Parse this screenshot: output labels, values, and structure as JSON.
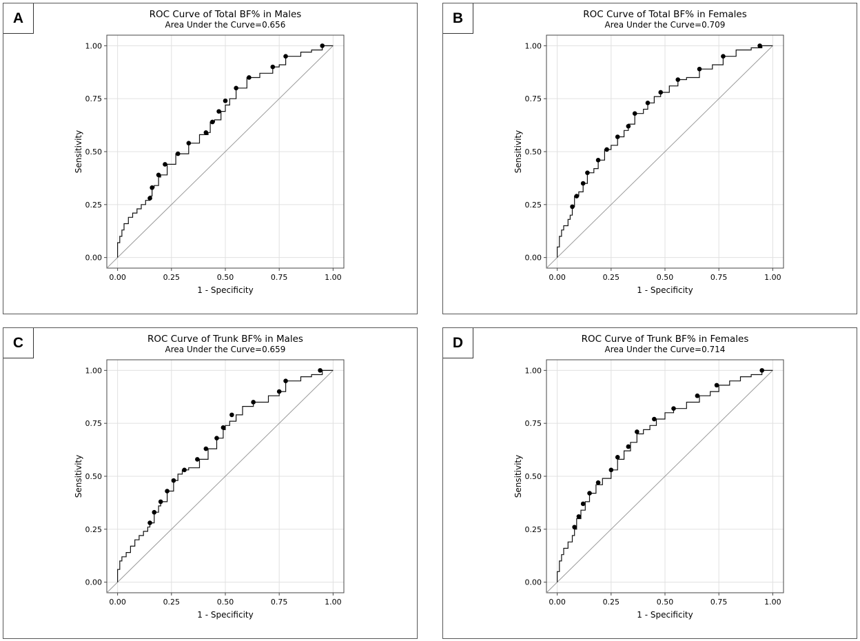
{
  "chart_data": [
    {
      "type": "line",
      "panel_label": "A",
      "title": "ROC Curve of Total BF% in Males",
      "subtitle": "Area Under the Curve=0.656",
      "xlabel": "1 - Specificity",
      "ylabel": "Sensitivity",
      "xlim": [
        -0.05,
        1.05
      ],
      "ylim": [
        -0.05,
        1.05
      ],
      "xticks": [
        "0.00",
        "0.25",
        "0.50",
        "0.75",
        "1.00"
      ],
      "yticks": [
        "0.00",
        "0.25",
        "0.50",
        "0.75",
        "1.00"
      ],
      "grid": true,
      "reference_line": {
        "x": [
          -0.05,
          1.0
        ],
        "y": [
          -0.05,
          1.0
        ]
      },
      "series": [
        {
          "name": "ROC",
          "x": [
            0.0,
            0.0,
            0.01,
            0.02,
            0.03,
            0.05,
            0.07,
            0.09,
            0.11,
            0.13,
            0.15,
            0.16,
            0.17,
            0.19,
            0.2,
            0.23,
            0.27,
            0.33,
            0.38,
            0.42,
            0.43,
            0.45,
            0.48,
            0.5,
            0.52,
            0.55,
            0.6,
            0.66,
            0.72,
            0.75,
            0.78,
            0.85,
            0.9,
            0.95,
            1.0
          ],
          "y": [
            0.0,
            0.07,
            0.1,
            0.13,
            0.16,
            0.19,
            0.21,
            0.23,
            0.25,
            0.27,
            0.29,
            0.33,
            0.34,
            0.38,
            0.39,
            0.44,
            0.49,
            0.54,
            0.58,
            0.59,
            0.64,
            0.65,
            0.69,
            0.72,
            0.75,
            0.8,
            0.85,
            0.87,
            0.9,
            0.91,
            0.95,
            0.97,
            0.98,
            1.0,
            1.0
          ]
        }
      ],
      "markers": {
        "x": [
          0.15,
          0.16,
          0.19,
          0.22,
          0.28,
          0.33,
          0.41,
          0.44,
          0.47,
          0.5,
          0.55,
          0.61,
          0.72,
          0.78,
          0.95
        ],
        "y": [
          0.28,
          0.33,
          0.39,
          0.44,
          0.49,
          0.54,
          0.59,
          0.64,
          0.69,
          0.74,
          0.8,
          0.85,
          0.9,
          0.95,
          1.0
        ]
      }
    },
    {
      "type": "line",
      "panel_label": "B",
      "title": "ROC Curve of Total BF% in Females",
      "subtitle": "Area Under the Curve=0.709",
      "xlabel": "1 - Specificity",
      "ylabel": "Sensitivity",
      "xlim": [
        -0.05,
        1.05
      ],
      "ylim": [
        -0.05,
        1.05
      ],
      "xticks": [
        "0.00",
        "0.25",
        "0.50",
        "0.75",
        "1.00"
      ],
      "yticks": [
        "0.00",
        "0.25",
        "0.50",
        "0.75",
        "1.00"
      ],
      "grid": true,
      "reference_line": {
        "x": [
          -0.05,
          1.0
        ],
        "y": [
          -0.05,
          1.0
        ]
      },
      "series": [
        {
          "name": "ROC",
          "x": [
            0.0,
            0.0,
            0.01,
            0.02,
            0.03,
            0.05,
            0.06,
            0.07,
            0.08,
            0.1,
            0.12,
            0.14,
            0.17,
            0.19,
            0.22,
            0.25,
            0.28,
            0.31,
            0.33,
            0.36,
            0.4,
            0.42,
            0.45,
            0.48,
            0.52,
            0.56,
            0.6,
            0.66,
            0.72,
            0.77,
            0.83,
            0.9,
            0.95,
            1.0
          ],
          "y": [
            0.0,
            0.05,
            0.1,
            0.13,
            0.15,
            0.18,
            0.2,
            0.24,
            0.29,
            0.31,
            0.35,
            0.4,
            0.42,
            0.46,
            0.51,
            0.53,
            0.57,
            0.6,
            0.63,
            0.68,
            0.7,
            0.73,
            0.76,
            0.78,
            0.81,
            0.84,
            0.85,
            0.89,
            0.91,
            0.95,
            0.98,
            0.99,
            1.0,
            1.0
          ]
        }
      ],
      "markers": {
        "x": [
          0.07,
          0.09,
          0.12,
          0.14,
          0.19,
          0.23,
          0.28,
          0.33,
          0.36,
          0.42,
          0.48,
          0.56,
          0.66,
          0.77,
          0.94
        ],
        "y": [
          0.24,
          0.29,
          0.35,
          0.4,
          0.46,
          0.51,
          0.57,
          0.62,
          0.68,
          0.73,
          0.78,
          0.84,
          0.89,
          0.95,
          1.0
        ]
      }
    },
    {
      "type": "line",
      "panel_label": "C",
      "title": "ROC Curve of Trunk BF% in Males",
      "subtitle": "Area Under the Curve=0.659",
      "xlabel": "1 - Specificity",
      "ylabel": "Sensitivity",
      "xlim": [
        -0.05,
        1.05
      ],
      "ylim": [
        -0.05,
        1.05
      ],
      "xticks": [
        "0.00",
        "0.25",
        "0.50",
        "0.75",
        "1.00"
      ],
      "yticks": [
        "0.00",
        "0.25",
        "0.50",
        "0.75",
        "1.00"
      ],
      "grid": true,
      "reference_line": {
        "x": [
          -0.05,
          1.0
        ],
        "y": [
          -0.05,
          1.0
        ]
      },
      "series": [
        {
          "name": "ROC",
          "x": [
            0.0,
            0.0,
            0.01,
            0.02,
            0.04,
            0.06,
            0.08,
            0.1,
            0.12,
            0.14,
            0.15,
            0.17,
            0.19,
            0.2,
            0.23,
            0.26,
            0.28,
            0.3,
            0.33,
            0.38,
            0.42,
            0.46,
            0.49,
            0.5,
            0.52,
            0.55,
            0.58,
            0.63,
            0.7,
            0.75,
            0.78,
            0.85,
            0.9,
            0.95,
            1.0
          ],
          "y": [
            0.0,
            0.06,
            0.1,
            0.12,
            0.14,
            0.17,
            0.2,
            0.22,
            0.24,
            0.26,
            0.28,
            0.33,
            0.36,
            0.38,
            0.43,
            0.48,
            0.51,
            0.53,
            0.54,
            0.58,
            0.63,
            0.68,
            0.72,
            0.74,
            0.76,
            0.79,
            0.83,
            0.85,
            0.88,
            0.9,
            0.95,
            0.97,
            0.98,
            1.0,
            1.0
          ]
        }
      ],
      "markers": {
        "x": [
          0.15,
          0.17,
          0.2,
          0.23,
          0.26,
          0.31,
          0.37,
          0.41,
          0.46,
          0.49,
          0.53,
          0.63,
          0.75,
          0.78,
          0.94
        ],
        "y": [
          0.28,
          0.33,
          0.38,
          0.43,
          0.48,
          0.53,
          0.58,
          0.63,
          0.68,
          0.73,
          0.79,
          0.85,
          0.9,
          0.95,
          1.0
        ]
      }
    },
    {
      "type": "line",
      "panel_label": "D",
      "title": "ROC Curve of Trunk BF% in Females",
      "subtitle": "Area Under the Curve=0.714",
      "xlabel": "1 - Specificity",
      "ylabel": "Sensitivity",
      "xlim": [
        -0.05,
        1.05
      ],
      "ylim": [
        -0.05,
        1.05
      ],
      "xticks": [
        "0.00",
        "0.25",
        "0.50",
        "0.75",
        "1.00"
      ],
      "yticks": [
        "0.00",
        "0.25",
        "0.50",
        "0.75",
        "1.00"
      ],
      "grid": true,
      "reference_line": {
        "x": [
          -0.05,
          1.0
        ],
        "y": [
          -0.05,
          1.0
        ]
      },
      "series": [
        {
          "name": "ROC",
          "x": [
            0.0,
            0.0,
            0.01,
            0.02,
            0.03,
            0.05,
            0.07,
            0.08,
            0.09,
            0.11,
            0.13,
            0.15,
            0.18,
            0.21,
            0.25,
            0.28,
            0.31,
            0.34,
            0.37,
            0.4,
            0.43,
            0.46,
            0.5,
            0.54,
            0.6,
            0.66,
            0.71,
            0.75,
            0.8,
            0.85,
            0.9,
            0.95,
            1.0
          ],
          "y": [
            0.0,
            0.05,
            0.1,
            0.13,
            0.16,
            0.19,
            0.22,
            0.25,
            0.3,
            0.34,
            0.38,
            0.42,
            0.46,
            0.49,
            0.53,
            0.58,
            0.62,
            0.66,
            0.7,
            0.72,
            0.74,
            0.77,
            0.8,
            0.82,
            0.85,
            0.88,
            0.9,
            0.93,
            0.95,
            0.97,
            0.98,
            1.0,
            1.0
          ]
        }
      ],
      "markers": {
        "x": [
          0.08,
          0.1,
          0.12,
          0.15,
          0.19,
          0.25,
          0.28,
          0.33,
          0.37,
          0.45,
          0.54,
          0.65,
          0.74,
          0.95
        ],
        "y": [
          0.26,
          0.31,
          0.37,
          0.42,
          0.47,
          0.53,
          0.59,
          0.64,
          0.71,
          0.77,
          0.82,
          0.88,
          0.93,
          1.0
        ]
      }
    }
  ]
}
